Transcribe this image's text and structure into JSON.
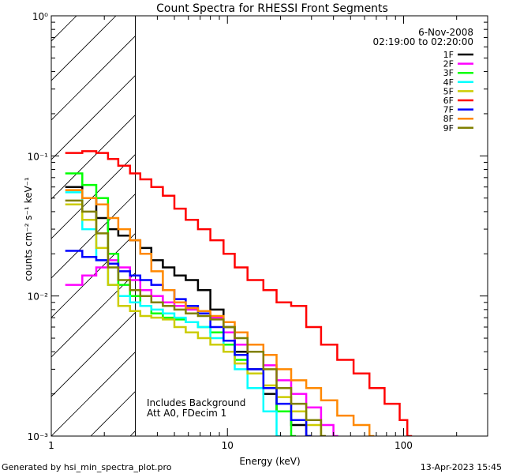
{
  "chart_data": {
    "type": "line",
    "title": "Count Spectra for RHESSI Front Segments",
    "xlabel": "Energy (keV)",
    "ylabel": "counts cm⁻² s⁻¹ keV⁻¹",
    "xscale": "log",
    "yscale": "log",
    "xlim": [
      1,
      300
    ],
    "ylim": [
      0.001,
      1
    ],
    "x_tick_labels": [
      "1",
      "10",
      "100"
    ],
    "y_tick_labels": [
      "10⁻³",
      "10⁻²",
      "10⁻¹",
      "10⁰"
    ],
    "date": "6-Nov-2008",
    "time_range": "02:19:00 to 02:20:00",
    "hatched_region_keV": [
      1,
      3
    ],
    "annotations": [
      "Includes Background",
      "Att A0, FDecim 1"
    ],
    "series": [
      {
        "name": "1F",
        "color": "#000000",
        "x": [
          1.2,
          1.5,
          1.8,
          2.1,
          2.4,
          2.8,
          3.2,
          3.7,
          4.3,
          5,
          5.8,
          6.8,
          8,
          9.5,
          11,
          13,
          16,
          19,
          23,
          28
        ],
        "values": [
          0.06,
          0.05,
          0.036,
          0.03,
          0.027,
          0.025,
          0.022,
          0.018,
          0.016,
          0.014,
          0.013,
          0.011,
          0.008,
          0.006,
          0.004,
          0.003,
          0.002,
          0.0015,
          0.0012,
          0.001
        ]
      },
      {
        "name": "2F",
        "color": "#ff00ff",
        "x": [
          1.2,
          1.5,
          1.8,
          2.1,
          2.4,
          2.8,
          3.2,
          3.7,
          4.3,
          5,
          5.8,
          6.8,
          8,
          9.5,
          11,
          13,
          16,
          19,
          23,
          28,
          34,
          40
        ],
        "values": [
          0.012,
          0.014,
          0.016,
          0.018,
          0.016,
          0.013,
          0.011,
          0.01,
          0.009,
          0.0085,
          0.008,
          0.0075,
          0.007,
          0.0055,
          0.0045,
          0.004,
          0.0032,
          0.0025,
          0.002,
          0.0016,
          0.0012,
          0.001
        ]
      },
      {
        "name": "3F",
        "color": "#00ff00",
        "x": [
          1.2,
          1.5,
          1.8,
          2.1,
          2.4,
          2.8,
          3.2,
          3.7,
          4.3,
          5,
          5.8,
          6.8,
          8,
          9.5,
          11,
          13,
          16,
          19,
          23
        ],
        "values": [
          0.075,
          0.062,
          0.05,
          0.02,
          0.012,
          0.01,
          0.0085,
          0.0075,
          0.007,
          0.0068,
          0.0065,
          0.006,
          0.0055,
          0.0045,
          0.0035,
          0.0028,
          0.0022,
          0.0015,
          0.001
        ]
      },
      {
        "name": "4F",
        "color": "#00ffff",
        "x": [
          1.2,
          1.5,
          1.8,
          2.1,
          2.4,
          2.8,
          3.2,
          3.7,
          4.3,
          5,
          5.8,
          6.8,
          8,
          9.5,
          11,
          13,
          16,
          19
        ],
        "values": [
          0.055,
          0.03,
          0.018,
          0.012,
          0.01,
          0.009,
          0.0085,
          0.008,
          0.0075,
          0.007,
          0.0065,
          0.006,
          0.005,
          0.004,
          0.003,
          0.0022,
          0.0015,
          0.001
        ]
      },
      {
        "name": "5F",
        "color": "#cccc00",
        "x": [
          1.2,
          1.5,
          1.8,
          2.1,
          2.4,
          2.8,
          3.2,
          3.7,
          4.3,
          5,
          5.8,
          6.8,
          8,
          9.5,
          11,
          13,
          16,
          19,
          23,
          28,
          34
        ],
        "values": [
          0.045,
          0.035,
          0.022,
          0.012,
          0.0085,
          0.0078,
          0.0072,
          0.007,
          0.0068,
          0.006,
          0.0055,
          0.005,
          0.0045,
          0.004,
          0.0033,
          0.0028,
          0.0023,
          0.0019,
          0.0015,
          0.0012,
          0.001
        ]
      },
      {
        "name": "6F",
        "color": "#ff0000",
        "x": [
          1.2,
          1.5,
          1.8,
          2.1,
          2.4,
          2.8,
          3.2,
          3.7,
          4.3,
          5,
          5.8,
          6.8,
          8,
          9.5,
          11,
          13,
          16,
          19,
          23,
          28,
          34,
          42,
          52,
          64,
          78,
          95,
          105
        ],
        "values": [
          0.105,
          0.108,
          0.105,
          0.095,
          0.085,
          0.075,
          0.068,
          0.06,
          0.052,
          0.042,
          0.035,
          0.03,
          0.025,
          0.02,
          0.016,
          0.013,
          0.011,
          0.009,
          0.0085,
          0.006,
          0.0045,
          0.0035,
          0.0028,
          0.0022,
          0.0017,
          0.0013,
          0.001
        ]
      },
      {
        "name": "7F",
        "color": "#0000ff",
        "x": [
          1.2,
          1.5,
          1.8,
          2.1,
          2.4,
          2.8,
          3.2,
          3.7,
          4.3,
          5,
          5.8,
          6.8,
          8,
          9.5,
          11,
          13,
          16,
          19,
          23,
          28
        ],
        "values": [
          0.021,
          0.019,
          0.018,
          0.017,
          0.015,
          0.014,
          0.013,
          0.012,
          0.011,
          0.0095,
          0.0085,
          0.0075,
          0.006,
          0.0048,
          0.0038,
          0.003,
          0.0022,
          0.0017,
          0.0013,
          0.001
        ]
      },
      {
        "name": "8F",
        "color": "#ff8800",
        "x": [
          1.2,
          1.5,
          1.8,
          2.1,
          2.4,
          2.8,
          3.2,
          3.7,
          4.3,
          5,
          5.8,
          6.8,
          8,
          9.5,
          11,
          13,
          16,
          19,
          23,
          28,
          34,
          42,
          52,
          64
        ],
        "values": [
          0.057,
          0.05,
          0.045,
          0.036,
          0.03,
          0.025,
          0.02,
          0.015,
          0.011,
          0.009,
          0.0082,
          0.0078,
          0.0072,
          0.0065,
          0.0055,
          0.0045,
          0.0038,
          0.003,
          0.0025,
          0.0022,
          0.0018,
          0.0014,
          0.0012,
          0.001
        ]
      },
      {
        "name": "9F",
        "color": "#808000",
        "x": [
          1.2,
          1.5,
          1.8,
          2.1,
          2.4,
          2.8,
          3.2,
          3.7,
          4.3,
          5,
          5.8,
          6.8,
          8,
          9.5,
          11,
          13,
          16,
          19,
          23,
          28,
          34
        ],
        "values": [
          0.048,
          0.04,
          0.028,
          0.016,
          0.013,
          0.011,
          0.01,
          0.009,
          0.0085,
          0.008,
          0.0075,
          0.0072,
          0.0068,
          0.006,
          0.005,
          0.004,
          0.003,
          0.0022,
          0.0017,
          0.0013,
          0.001
        ]
      }
    ]
  },
  "footer": {
    "generated_by": "Generated by hsi_min_spectra_plot.pro",
    "timestamp": "13-Apr-2023 15:45"
  }
}
